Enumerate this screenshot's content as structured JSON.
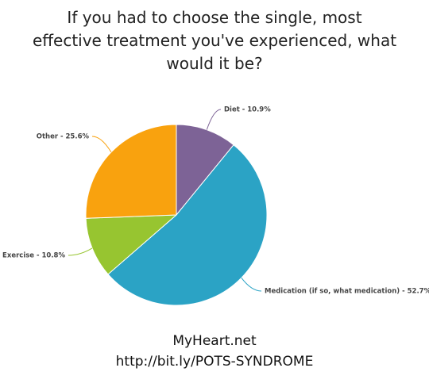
{
  "chart_data": {
    "type": "pie",
    "title": "If you had to choose the single, most effective treatment you've experienced, what would it be?",
    "values": [
      10.9,
      52.7,
      10.8,
      25.6
    ],
    "value_labels": [
      "Diet - 10.9%",
      "Medication (if so, what medication) - 52.7%",
      "Exercise - 10.8%",
      "Other - 25.6%"
    ],
    "colors": [
      "#7d6396",
      "#2ba3c5",
      "#97c530",
      "#f9a20e"
    ],
    "footer": [
      "MyHeart.net",
      "http://bit.ly/POTS-SYNDROME"
    ]
  }
}
